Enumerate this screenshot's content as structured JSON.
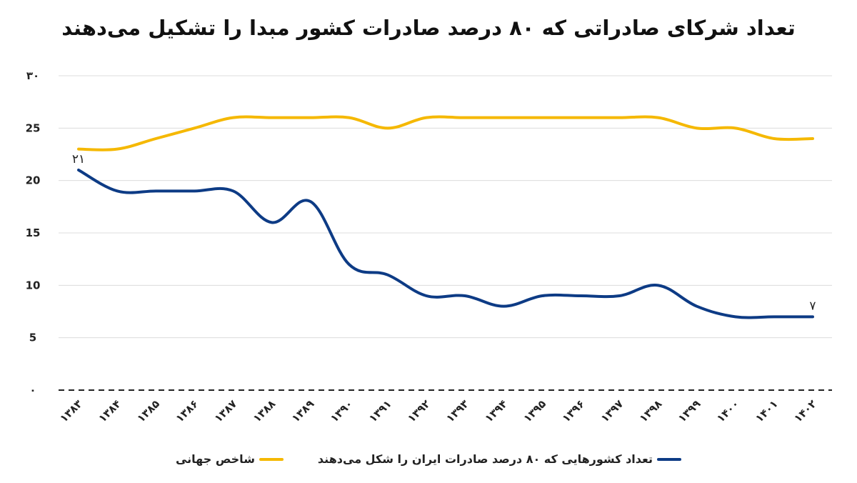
{
  "chart_data": {
    "type": "line",
    "title": "تعداد شرکای صادراتی که ۸۰ درصد صادرات کشور مبدا را تشکیل می‌دهند",
    "xlabel": "",
    "ylabel": "",
    "ylim": [
      0,
      30
    ],
    "yticks": [
      0,
      5,
      10,
      15,
      20,
      25,
      30
    ],
    "ytick_labels": [
      "۰",
      "5",
      "10",
      "15",
      "20",
      "25",
      "۳۰"
    ],
    "categories": [
      "۱۳۸۳",
      "۱۳۸۴",
      "۱۳۸۵",
      "۱۳۸۶",
      "۱۳۸۷",
      "۱۳۸۸",
      "۱۳۸۹",
      "۱۳۹۰",
      "۱۳۹۱",
      "۱۳۹۲",
      "۱۳۹۳",
      "۱۳۹۴",
      "۱۳۹۵",
      "۱۳۹۶",
      "۱۳۹۷",
      "۱۳۹۸",
      "۱۳۹۹",
      "۱۴۰۰",
      "۱۴۰۱",
      "۱۴۰۲"
    ],
    "grid": true,
    "legend_position": "bottom",
    "series": [
      {
        "name": "تعداد کشورهایی که ۸۰ درصد صادرات ایران را شکل می‌دهند",
        "color": "#0d3b85",
        "values": [
          21,
          19,
          19,
          19,
          19,
          16,
          18,
          12,
          11,
          9,
          9,
          8,
          9,
          9,
          9,
          10,
          8,
          7,
          7,
          7
        ],
        "labels": [
          {
            "index": 0,
            "text": "۲۱"
          },
          {
            "index": 19,
            "text": "۷"
          }
        ]
      },
      {
        "name": "شاخص جهانی",
        "color": "#f5b800",
        "values": [
          23,
          23,
          24,
          25,
          26,
          26,
          26,
          26,
          25,
          26,
          26,
          26,
          26,
          26,
          26,
          26,
          25,
          25,
          24,
          24
        ]
      }
    ]
  }
}
